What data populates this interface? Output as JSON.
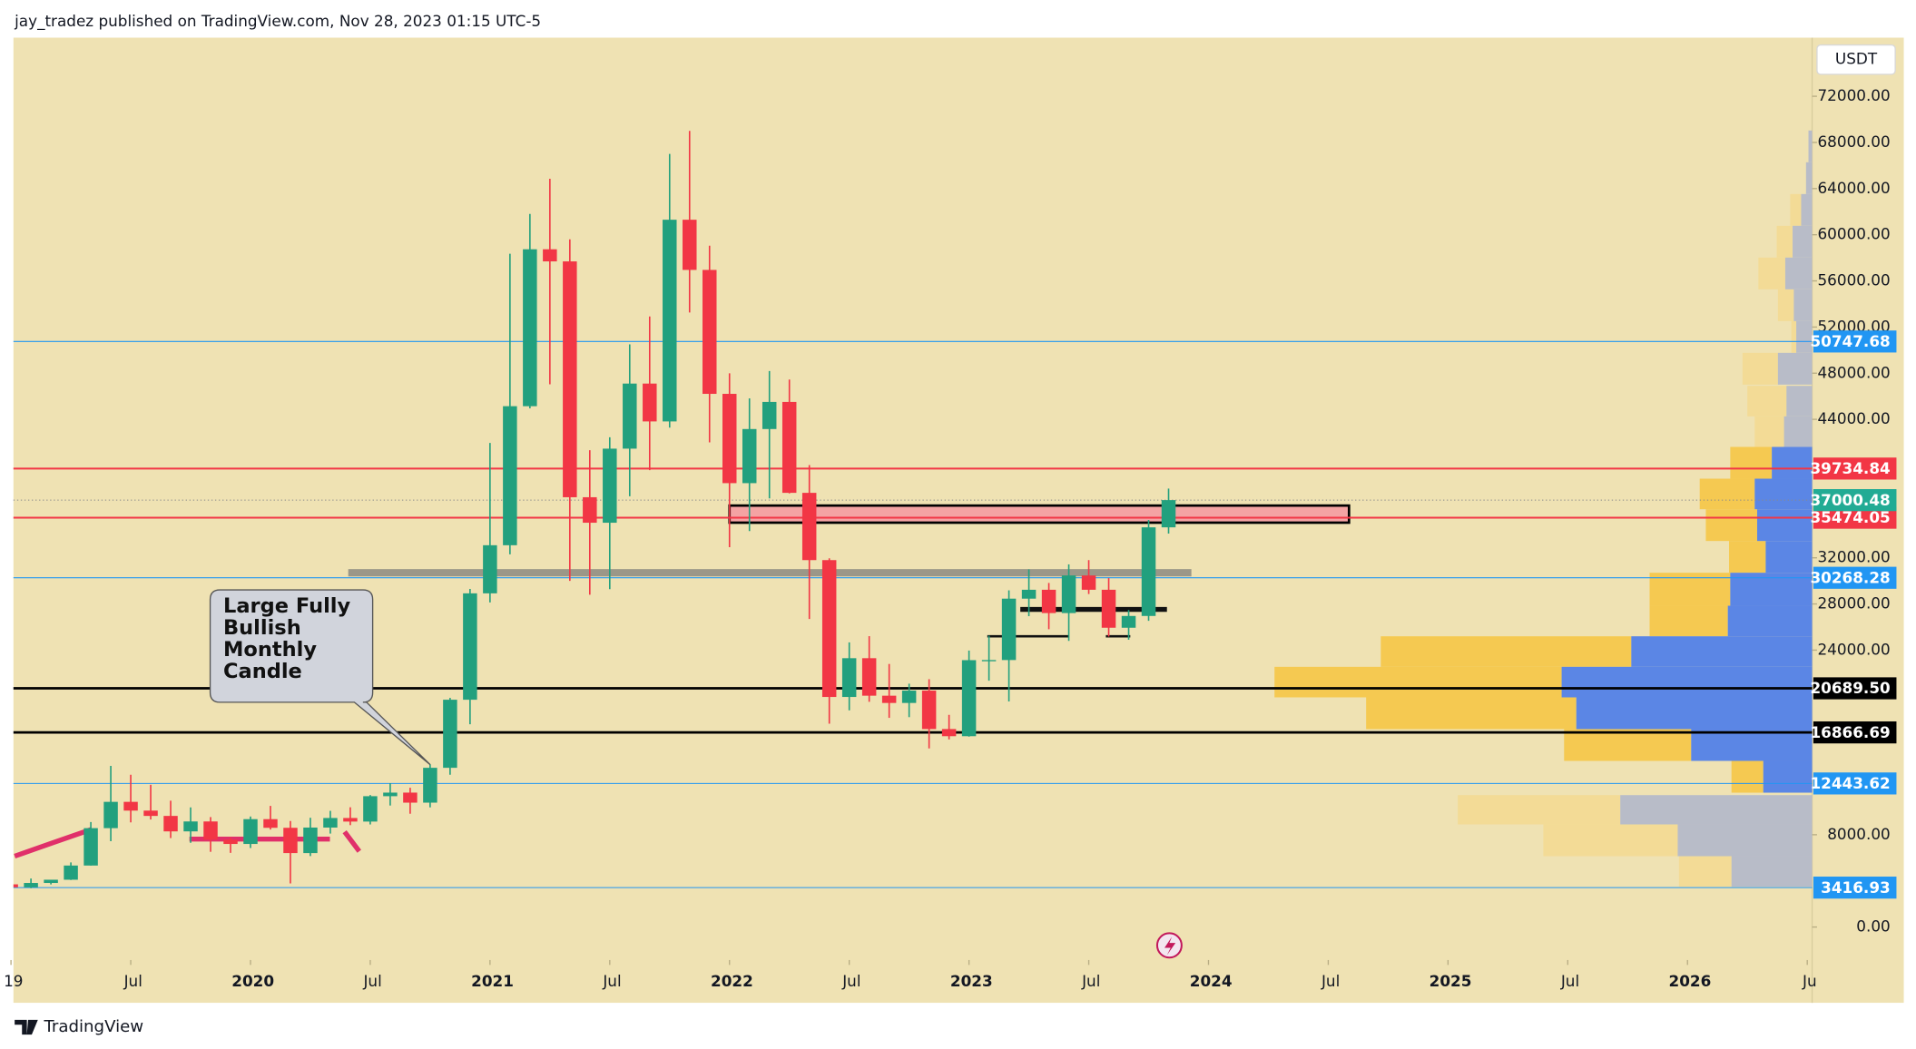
{
  "chart_data": {
    "type": "candlestick",
    "header": "jay_tradez published on TradingView.com, Nov 28, 2023 01:15 UTC-5",
    "currency": "USDT",
    "annotation": "Large Fully Bullish Monthly Candle",
    "footer": "TradingView",
    "up_color": "#22a07e",
    "down_color": "#f23645",
    "x": [
      "2019-01",
      "2019-02",
      "2019-03",
      "2019-04",
      "2019-05",
      "2019-06",
      "2019-07",
      "2019-08",
      "2019-09",
      "2019-10",
      "2019-11",
      "2019-12",
      "2020-01",
      "2020-02",
      "2020-03",
      "2020-04",
      "2020-05",
      "2020-06",
      "2020-07",
      "2020-08",
      "2020-09",
      "2020-10",
      "2020-11",
      "2020-12",
      "2021-01",
      "2021-02",
      "2021-03",
      "2021-04",
      "2021-05",
      "2021-06",
      "2021-07",
      "2021-08",
      "2021-09",
      "2021-10",
      "2021-11",
      "2021-12",
      "2022-01",
      "2022-02",
      "2022-03",
      "2022-04",
      "2022-05",
      "2022-06",
      "2022-07",
      "2022-08",
      "2022-09",
      "2022-10",
      "2022-11",
      "2022-12",
      "2023-01",
      "2023-02",
      "2023-03",
      "2023-04",
      "2023-05",
      "2023-06",
      "2023-07",
      "2023-08",
      "2023-09",
      "2023-10",
      "2023-11"
    ],
    "open": [
      3700,
      3440,
      3820,
      4100,
      5330,
      8570,
      10850,
      10090,
      9630,
      8290,
      9150,
      7570,
      7200,
      9350,
      8600,
      6410,
      8620,
      9450,
      9140,
      11340,
      11650,
      10780,
      13800,
      19700,
      28920,
      33090,
      45140,
      58740,
      57690,
      37250,
      35040,
      41460,
      47100,
      43820,
      61300,
      56950,
      46210,
      38470,
      43160,
      45510,
      37630,
      31800,
      19940,
      23300,
      20050,
      19420,
      20490,
      17160,
      16540,
      23130,
      23140,
      28460,
      29230,
      27210,
      30470,
      29230,
      25940,
      26960,
      34640
    ],
    "high": [
      4140,
      4200,
      4100,
      5600,
      9100,
      13970,
      13200,
      12330,
      10950,
      10370,
      9530,
      7750,
      9580,
      10500,
      9190,
      9470,
      10070,
      10380,
      11440,
      12470,
      12070,
      14100,
      19860,
      29300,
      41950,
      58350,
      61800,
      64850,
      59600,
      41330,
      42450,
      50500,
      52920,
      67000,
      69000,
      59050,
      47990,
      45820,
      48190,
      47450,
      40040,
      31960,
      24670,
      25210,
      22800,
      21090,
      21480,
      18390,
      23960,
      25250,
      29180,
      31000,
      29820,
      31430,
      31800,
      30240,
      27480,
      35280,
      38000
    ],
    "low": [
      3350,
      3370,
      3690,
      4080,
      5330,
      7440,
      9070,
      9320,
      7710,
      7300,
      6520,
      6430,
      6850,
      8450,
      3780,
      6150,
      8100,
      8830,
      8890,
      10530,
      9820,
      10370,
      13200,
      17570,
      28130,
      32300,
      44950,
      47040,
      30000,
      28800,
      29280,
      37330,
      39600,
      43280,
      53260,
      42000,
      32920,
      34320,
      37150,
      37580,
      26700,
      17620,
      18780,
      19520,
      18130,
      18190,
      15480,
      16260,
      16500,
      21350,
      19550,
      26940,
      25810,
      24800,
      28860,
      25170,
      24900,
      26540,
      34100
    ],
    "close": [
      3440,
      3820,
      4100,
      5330,
      8570,
      10850,
      10090,
      9630,
      8290,
      9150,
      7570,
      7200,
      9350,
      8600,
      6410,
      8620,
      9450,
      9140,
      11340,
      11650,
      10780,
      13800,
      19700,
      28920,
      33090,
      45140,
      58740,
      57690,
      37250,
      35040,
      41460,
      47100,
      43820,
      61300,
      56950,
      46210,
      38470,
      43160,
      45510,
      37630,
      31800,
      19940,
      23300,
      20050,
      19420,
      20490,
      17160,
      16540,
      23130,
      23140,
      28460,
      29230,
      27210,
      30470,
      29230,
      25940,
      26960,
      34640,
      37000.48
    ],
    "xlim": [
      "2019-01",
      "2026-07"
    ],
    "xticks": [
      {
        "value": "2019-01",
        "label": "19"
      },
      {
        "value": "2019-07",
        "label": "Jul"
      },
      {
        "value": "2020-01",
        "label": "2020"
      },
      {
        "value": "2020-07",
        "label": "Jul"
      },
      {
        "value": "2021-01",
        "label": "2021"
      },
      {
        "value": "2021-07",
        "label": "Jul"
      },
      {
        "value": "2022-01",
        "label": "2022"
      },
      {
        "value": "2022-07",
        "label": "Jul"
      },
      {
        "value": "2023-01",
        "label": "2023"
      },
      {
        "value": "2023-07",
        "label": "Jul"
      },
      {
        "value": "2024-01",
        "label": "2024"
      },
      {
        "value": "2024-07",
        "label": "Jul"
      },
      {
        "value": "2025-01",
        "label": "2025"
      },
      {
        "value": "2025-07",
        "label": "Jul"
      },
      {
        "value": "2026-01",
        "label": "2026"
      },
      {
        "value": "2026-07",
        "label": "Ju"
      }
    ],
    "ylim": [
      -2860,
      77080
    ],
    "yticks": [
      {
        "value": 0,
        "label": "0.00"
      },
      {
        "value": 8000,
        "label": "8000.00"
      },
      {
        "value": 24000,
        "label": "24000.00"
      },
      {
        "value": 28000,
        "label": "28000.00"
      },
      {
        "value": 32000,
        "label": "32000.00"
      },
      {
        "value": 44000,
        "label": "44000.00"
      },
      {
        "value": 48000,
        "label": "48000.00"
      },
      {
        "value": 52000,
        "label": "52000.00"
      },
      {
        "value": 56000,
        "label": "56000.00"
      },
      {
        "value": 60000,
        "label": "60000.00"
      },
      {
        "value": 64000,
        "label": "64000.00"
      },
      {
        "value": 68000,
        "label": "68000.00"
      },
      {
        "value": 72000,
        "label": "72000.00"
      }
    ],
    "price_lines": {
      "values": [
        50747.68,
        39734.84,
        35474.05,
        30268.28,
        20689.5,
        16866.69,
        12443.62,
        3416.93
      ],
      "value_labels": [
        "50747.68",
        "39734.84",
        "35474.05",
        "30268.28",
        "20689.50",
        "16866.69",
        "12443.62",
        "3416.93"
      ],
      "colors": [
        "#2196f3",
        "#f23645",
        "#f23645",
        "#2196f3",
        "#000000",
        "#000000",
        "#2196f3",
        "#2196f3"
      ],
      "line_widths": [
        0.8,
        1.5,
        1.5,
        0.8,
        2,
        2,
        0.8,
        0.8
      ]
    },
    "last_color": "#22ab94"
  }
}
